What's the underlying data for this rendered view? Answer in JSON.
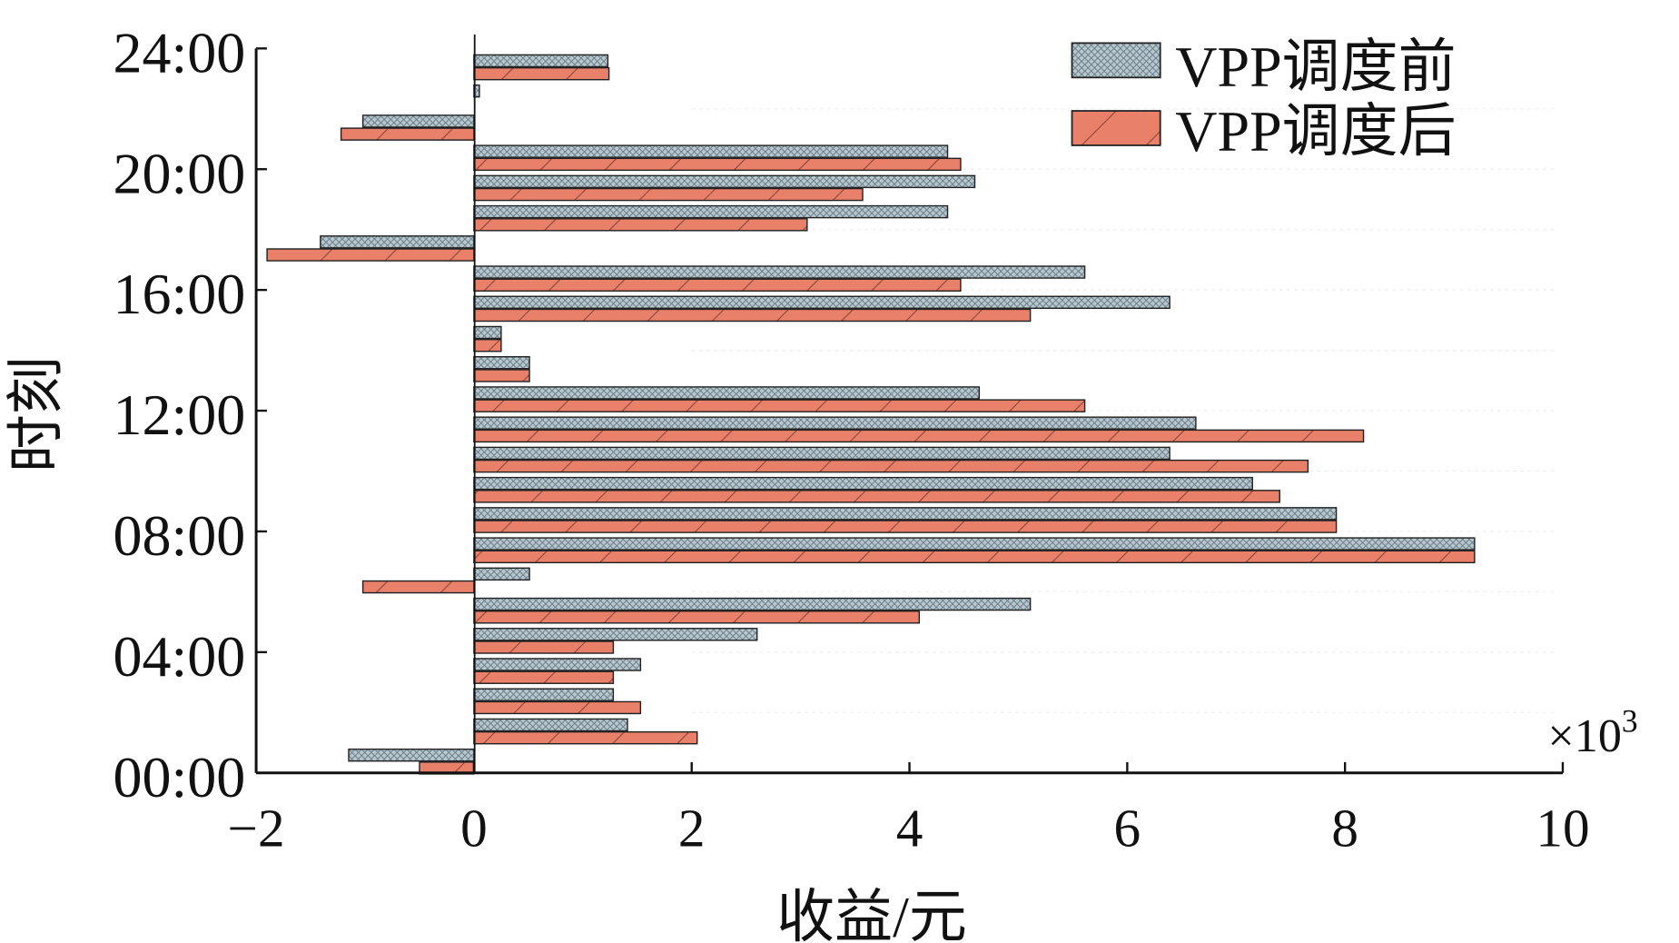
{
  "chart_data": {
    "type": "bar",
    "orientation": "horizontal",
    "title": "",
    "xlabel": "收益/元",
    "ylabel": "时刻",
    "x_multiplier_label": "×10",
    "x_multiplier_exp": "3",
    "xlim": [
      -2,
      10
    ],
    "xticks": [
      "−2",
      "0",
      "2",
      "4",
      "6",
      "8",
      "10"
    ],
    "xtick_values": [
      -2,
      0,
      2,
      4,
      6,
      8,
      10
    ],
    "ylim": [
      0,
      24
    ],
    "yticks": [
      "00:00",
      "04:00",
      "08:00",
      "12:00",
      "16:00",
      "20:00",
      "24:00"
    ],
    "ytick_values": [
      0,
      4,
      8,
      12,
      16,
      20,
      24
    ],
    "hours": [
      1,
      2,
      3,
      4,
      5,
      6,
      7,
      8,
      9,
      10,
      11,
      12,
      13,
      14,
      15,
      16,
      17,
      18,
      19,
      20,
      21,
      22,
      23,
      24
    ],
    "legend_position": "top-right",
    "series": [
      {
        "name": "VPP调度前",
        "color": "#a9bcc6",
        "values": [
          -1.15,
          1.41,
          1.28,
          1.53,
          2.6,
          5.11,
          0.51,
          9.19,
          7.92,
          7.15,
          6.39,
          6.63,
          4.64,
          0.51,
          0.25,
          6.39,
          5.61,
          -1.41,
          4.35,
          4.6,
          4.35,
          -1.02,
          0.05,
          1.23
        ]
      },
      {
        "name": "VPP调度后",
        "color": "#e8806a",
        "values": [
          -0.5,
          2.05,
          1.53,
          1.28,
          1.28,
          4.09,
          -1.02,
          9.19,
          7.92,
          7.4,
          7.66,
          8.17,
          5.61,
          0.51,
          0.25,
          5.11,
          4.47,
          -1.9,
          3.06,
          3.57,
          4.47,
          -1.22,
          0,
          1.24
        ]
      }
    ]
  }
}
